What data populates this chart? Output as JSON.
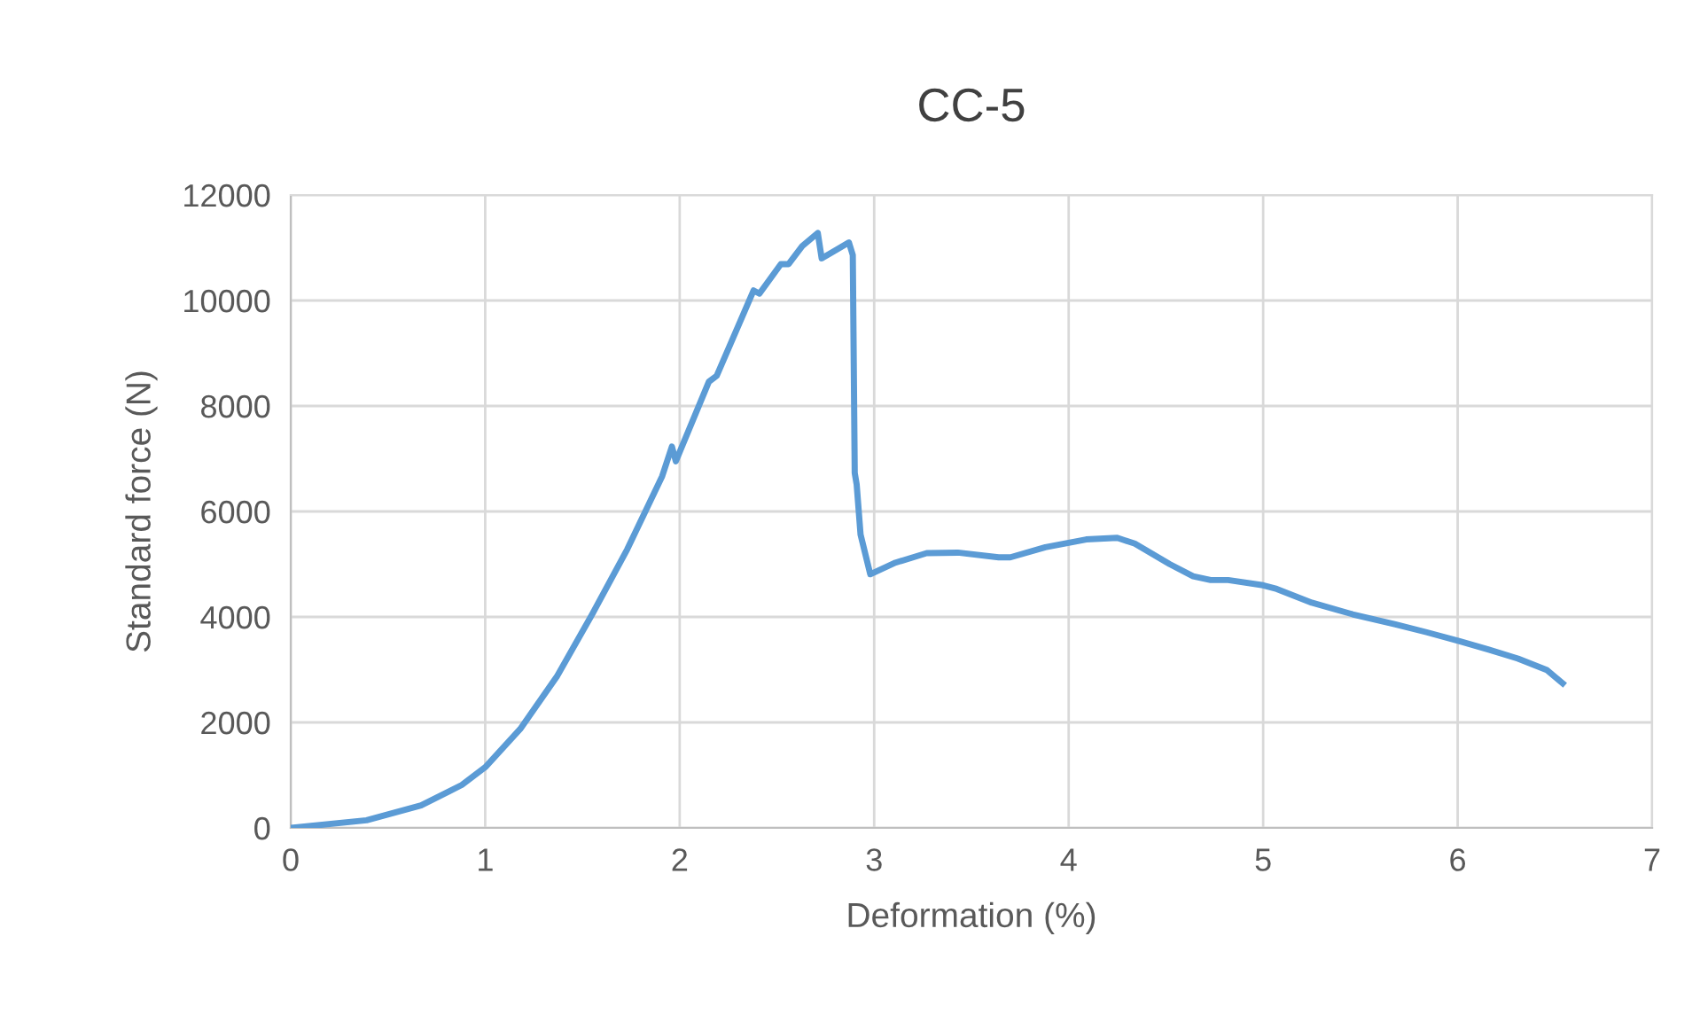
{
  "chart_data": {
    "type": "line",
    "title": "CC-5",
    "xlabel": "Deformation (%)",
    "ylabel": "Standard force (N)",
    "xlim": [
      0,
      7
    ],
    "xticks": [
      0,
      1,
      2,
      3,
      4,
      5,
      6,
      7
    ],
    "ylim": [
      0,
      12000
    ],
    "yticks": [
      0,
      2000,
      4000,
      6000,
      8000,
      10000,
      12000
    ],
    "grid": true,
    "series": [
      {
        "color": "#5b9bd5",
        "marker": "none",
        "line_style": "solid",
        "x": [
          0,
          0.39,
          0.67,
          0.88,
          1.0,
          1.18,
          1.37,
          1.55,
          1.73,
          1.91,
          1.96,
          1.98,
          2.15,
          2.19,
          2.38,
          2.41,
          2.52,
          2.56,
          2.63,
          2.71,
          2.73,
          2.81,
          2.87,
          2.89,
          2.9,
          2.91,
          2.93,
          2.98,
          3.11,
          3.27,
          3.43,
          3.64,
          3.7,
          3.88,
          4.09,
          4.25,
          4.34,
          4.52,
          4.64,
          4.73,
          4.82,
          5.0,
          5.07,
          5.25,
          5.46,
          5.68,
          5.84,
          6.01,
          6.16,
          6.31,
          6.46,
          6.54
        ],
        "values": [
          0,
          145,
          425,
          815,
          1150,
          1875,
          2880,
          4050,
          5280,
          6670,
          7230,
          6950,
          8460,
          8570,
          10190,
          10130,
          10690,
          10690,
          11030,
          11280,
          10800,
          10970,
          11100,
          10860,
          6730,
          6510,
          5560,
          4810,
          5030,
          5210,
          5220,
          5130,
          5130,
          5320,
          5470,
          5500,
          5390,
          5000,
          4770,
          4700,
          4700,
          4600,
          4530,
          4270,
          4050,
          3860,
          3710,
          3540,
          3380,
          3210,
          2990,
          2740
        ]
      }
    ]
  }
}
